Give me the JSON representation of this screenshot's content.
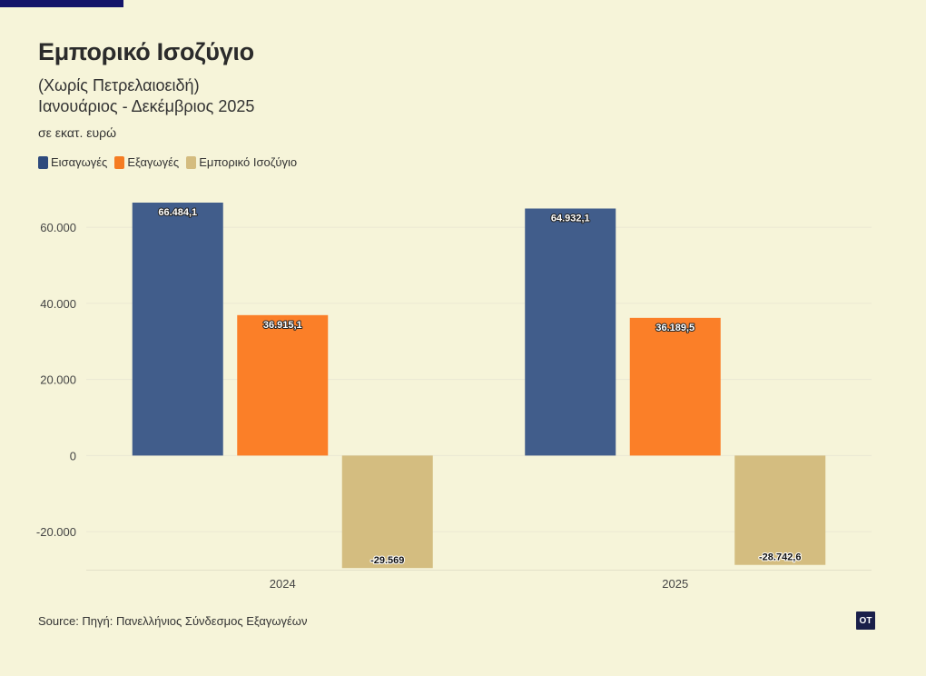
{
  "header": {
    "title": "Εμπορικό Ισοζύγιο",
    "subtitle_line1": "(Χωρίς Πετρελαιοειδή)",
    "subtitle_line2": "Ιανουάριος - Δεκέμβριος 2025",
    "unit": "σε εκατ. ευρώ"
  },
  "legend": [
    {
      "label": "Εισαγωγές",
      "color": "#2e4a7d"
    },
    {
      "label": "Εξαγωγές",
      "color": "#f57c22"
    },
    {
      "label": "Εμπορικό Ισοζύγιο",
      "color": "#d4bc7f"
    }
  ],
  "footer": {
    "source": "Source: Πηγή: Πανελλήνιος Σύνδεσμος Εξαγωγέων",
    "logo": "OT"
  },
  "chart_data": {
    "type": "bar",
    "title": "Εμπορικό Ισοζύγιο",
    "xlabel": "",
    "ylabel": "",
    "categories": [
      "2024",
      "2025"
    ],
    "ylim": [
      -30000,
      66484.1
    ],
    "yticks": [
      -20000,
      0,
      20000,
      40000,
      60000
    ],
    "ytick_labels": [
      "-20.000",
      "0",
      "20.000",
      "40.000",
      "60.000"
    ],
    "series": [
      {
        "name": "Εισαγωγές",
        "color": "#415d8b",
        "values": [
          66484.1,
          64932.1
        ],
        "labels": [
          "66.484,1",
          "64.932,1"
        ]
      },
      {
        "name": "Εξαγωγές",
        "color": "#fb7f28",
        "values": [
          36915.1,
          36189.5
        ],
        "labels": [
          "36.915,1",
          "36.189,5"
        ]
      },
      {
        "name": "Εμπορικό Ισοζύγιο",
        "color": "#d4bd80",
        "values": [
          -29569,
          -28742.6
        ],
        "labels": [
          "-29.569",
          "-28.742,6"
        ]
      }
    ]
  }
}
